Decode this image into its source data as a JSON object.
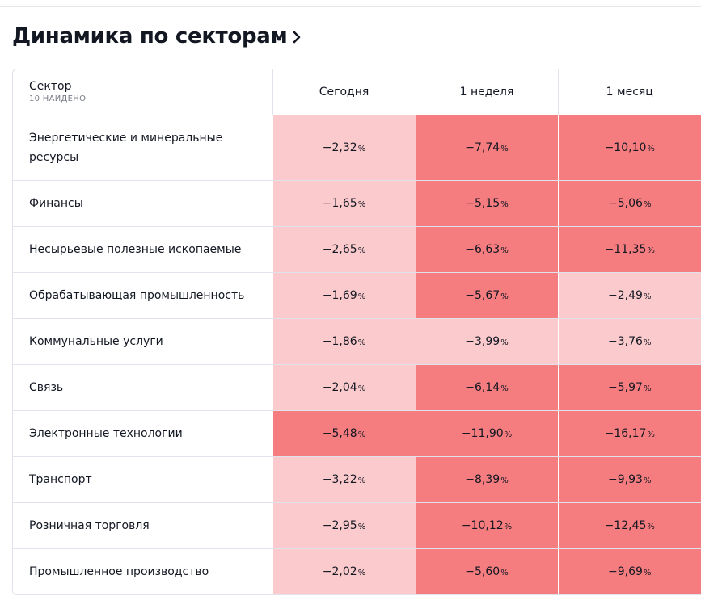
{
  "title": "Динамика по секторам",
  "table": {
    "columns": {
      "sector": "Сектор",
      "count": "10 НАЙДЕНО",
      "today": "Сегодня",
      "week": "1 неделя",
      "month": "1 месяц"
    },
    "percent_sign": "%",
    "colors": {
      "light": "#facacc",
      "dark": "#f57d7f"
    },
    "rows": [
      {
        "name": "Энергетические и минеральные ресурсы",
        "today": "−2,32",
        "week": "−7,74",
        "month": "−10,10",
        "shade": [
          "light",
          "dark",
          "dark"
        ]
      },
      {
        "name": "Финансы",
        "today": "−1,65",
        "week": "−5,15",
        "month": "−5,06",
        "shade": [
          "light",
          "dark",
          "dark"
        ]
      },
      {
        "name": "Несырьевые полезные ископаемые",
        "today": "−2,65",
        "week": "−6,63",
        "month": "−11,35",
        "shade": [
          "light",
          "dark",
          "dark"
        ]
      },
      {
        "name": "Обрабатывающая промышленность",
        "today": "−1,69",
        "week": "−5,67",
        "month": "−2,49",
        "shade": [
          "light",
          "dark",
          "light"
        ]
      },
      {
        "name": "Коммунальные услуги",
        "today": "−1,86",
        "week": "−3,99",
        "month": "−3,76",
        "shade": [
          "light",
          "light",
          "light"
        ]
      },
      {
        "name": "Связь",
        "today": "−2,04",
        "week": "−6,14",
        "month": "−5,97",
        "shade": [
          "light",
          "dark",
          "dark"
        ]
      },
      {
        "name": "Электронные технологии",
        "today": "−5,48",
        "week": "−11,90",
        "month": "−16,17",
        "shade": [
          "dark",
          "dark",
          "dark"
        ]
      },
      {
        "name": "Транспорт",
        "today": "−3,22",
        "week": "−8,39",
        "month": "−9,93",
        "shade": [
          "light",
          "dark",
          "dark"
        ]
      },
      {
        "name": "Розничная торговля",
        "today": "−2,95",
        "week": "−10,12",
        "month": "−12,45",
        "shade": [
          "light",
          "dark",
          "dark"
        ]
      },
      {
        "name": "Промышленное производство",
        "today": "−2,02",
        "week": "−5,60",
        "month": "−9,69",
        "shade": [
          "light",
          "dark",
          "dark"
        ]
      }
    ]
  }
}
